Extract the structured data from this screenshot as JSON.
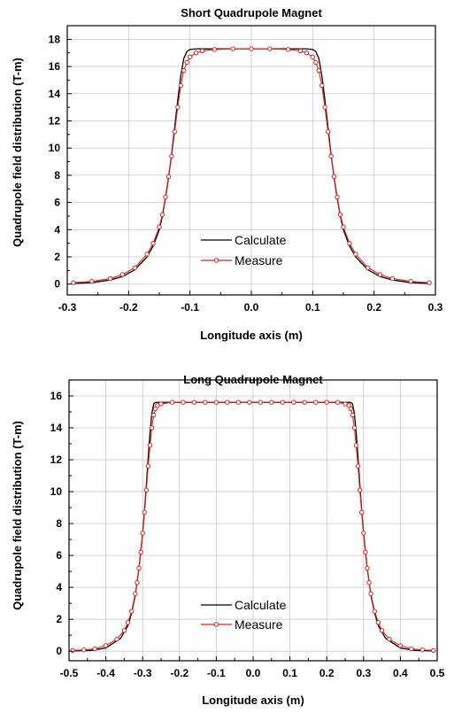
{
  "chart_data": [
    {
      "type": "line",
      "title": "Short Quadrupole Magnet",
      "xlabel": "Longitude axis (m)",
      "ylabel": "Quadrupole field distribution (T-m)",
      "xlim": [
        -0.3,
        0.3
      ],
      "ylim": [
        -0.8,
        19.0
      ],
      "xticks": [
        "-0.3",
        "-0.2",
        "-0.1",
        "0.0",
        "0.1",
        "0.2",
        "0.3"
      ],
      "yticks": [
        "0",
        "2",
        "4",
        "6",
        "8",
        "10",
        "12",
        "14",
        "16",
        "18"
      ],
      "grid": true,
      "legend_position": "lower-center",
      "series": [
        {
          "name": "Calculate",
          "color": "#000000",
          "marker": "none",
          "x": [
            -0.29,
            -0.26,
            -0.23,
            -0.21,
            -0.19,
            -0.17,
            -0.16,
            -0.15,
            -0.145,
            -0.14,
            -0.135,
            -0.13,
            -0.125,
            -0.12,
            -0.115,
            -0.11,
            -0.105,
            -0.1,
            -0.09,
            -0.06,
            0.0,
            0.06,
            0.09,
            0.1,
            0.105,
            0.11,
            0.115,
            0.12,
            0.125,
            0.13,
            0.135,
            0.14,
            0.145,
            0.15,
            0.16,
            0.17,
            0.19,
            0.21,
            0.23,
            0.26,
            0.29
          ],
          "y": [
            0.05,
            0.1,
            0.3,
            0.55,
            1.05,
            2.0,
            2.8,
            4.0,
            5.0,
            6.3,
            7.8,
            9.5,
            11.5,
            13.5,
            15.3,
            16.6,
            17.1,
            17.25,
            17.3,
            17.3,
            17.3,
            17.3,
            17.3,
            17.25,
            17.1,
            16.6,
            15.3,
            13.5,
            11.5,
            9.5,
            7.8,
            6.3,
            5.0,
            4.0,
            2.8,
            2.0,
            1.05,
            0.55,
            0.3,
            0.1,
            0.05
          ]
        },
        {
          "name": "Measure",
          "color": "#e02020",
          "marker": "circle",
          "x": [
            -0.29,
            -0.26,
            -0.23,
            -0.21,
            -0.19,
            -0.17,
            -0.16,
            -0.15,
            -0.145,
            -0.14,
            -0.135,
            -0.13,
            -0.125,
            -0.12,
            -0.115,
            -0.11,
            -0.105,
            -0.1,
            -0.09,
            -0.08,
            -0.06,
            -0.03,
            0.0,
            0.03,
            0.06,
            0.08,
            0.09,
            0.1,
            0.105,
            0.11,
            0.115,
            0.12,
            0.125,
            0.13,
            0.135,
            0.14,
            0.145,
            0.15,
            0.16,
            0.17,
            0.19,
            0.21,
            0.23,
            0.26,
            0.29
          ],
          "y": [
            0.1,
            0.2,
            0.4,
            0.7,
            1.2,
            2.2,
            3.0,
            4.2,
            5.1,
            6.4,
            7.9,
            9.4,
            11.2,
            13.0,
            14.6,
            15.7,
            16.3,
            16.7,
            17.0,
            17.15,
            17.25,
            17.3,
            17.3,
            17.3,
            17.25,
            17.15,
            17.0,
            16.7,
            16.3,
            15.7,
            14.6,
            13.0,
            11.2,
            9.4,
            7.9,
            6.4,
            5.1,
            4.2,
            3.0,
            2.2,
            1.2,
            0.7,
            0.4,
            0.2,
            0.1
          ]
        }
      ]
    },
    {
      "type": "line",
      "title": "Long Quadrupole Magnet",
      "xlabel": "Longitude axis (m)",
      "ylabel": "Quadrupole field distribution (T-m)",
      "xlim": [
        -0.5,
        0.5
      ],
      "ylim": [
        -0.6,
        17.0
      ],
      "xticks": [
        "-0.5",
        "-0.4",
        "-0.3",
        "-0.2",
        "-0.1",
        "0.0",
        "0.1",
        "0.2",
        "0.3",
        "0.4",
        "0.5"
      ],
      "yticks": [
        "0",
        "2",
        "4",
        "6",
        "8",
        "10",
        "12",
        "14",
        "16"
      ],
      "grid": true,
      "legend_position": "lower-center",
      "series": [
        {
          "name": "Calculate",
          "color": "#000000",
          "marker": "none",
          "x": [
            -0.49,
            -0.44,
            -0.4,
            -0.36,
            -0.34,
            -0.33,
            -0.32,
            -0.31,
            -0.3,
            -0.295,
            -0.29,
            -0.285,
            -0.28,
            -0.275,
            -0.27,
            -0.265,
            -0.26,
            -0.25,
            -0.2,
            0.0,
            0.2,
            0.25,
            0.26,
            0.265,
            0.27,
            0.275,
            0.28,
            0.285,
            0.29,
            0.295,
            0.3,
            0.31,
            0.32,
            0.33,
            0.34,
            0.36,
            0.4,
            0.44,
            0.49
          ],
          "y": [
            0.02,
            0.05,
            0.2,
            0.8,
            1.6,
            2.4,
            3.5,
            5.2,
            7.4,
            8.8,
            10.4,
            12.1,
            13.7,
            14.9,
            15.5,
            15.6,
            15.6,
            15.6,
            15.6,
            15.6,
            15.6,
            15.6,
            15.6,
            15.6,
            15.5,
            14.9,
            13.7,
            12.1,
            10.4,
            8.8,
            7.4,
            5.2,
            3.5,
            2.4,
            1.6,
            0.8,
            0.2,
            0.05,
            0.02
          ]
        },
        {
          "name": "Measure",
          "color": "#e02020",
          "marker": "circle",
          "x": [
            -0.49,
            -0.46,
            -0.43,
            -0.4,
            -0.37,
            -0.35,
            -0.34,
            -0.33,
            -0.32,
            -0.315,
            -0.31,
            -0.305,
            -0.3,
            -0.295,
            -0.29,
            -0.285,
            -0.28,
            -0.275,
            -0.27,
            -0.265,
            -0.26,
            -0.25,
            -0.22,
            -0.19,
            -0.16,
            -0.13,
            -0.1,
            -0.07,
            -0.04,
            -0.01,
            0.02,
            0.05,
            0.08,
            0.11,
            0.14,
            0.17,
            0.2,
            0.23,
            0.25,
            0.26,
            0.265,
            0.27,
            0.275,
            0.28,
            0.285,
            0.29,
            0.295,
            0.3,
            0.305,
            0.31,
            0.315,
            0.32,
            0.33,
            0.34,
            0.35,
            0.37,
            0.4,
            0.43,
            0.46,
            0.49
          ],
          "y": [
            0.05,
            0.08,
            0.15,
            0.35,
            0.75,
            1.3,
            1.8,
            2.5,
            3.6,
            4.3,
            5.2,
            6.2,
            7.4,
            8.7,
            10.1,
            11.6,
            12.9,
            14.0,
            14.8,
            15.2,
            15.4,
            15.5,
            15.6,
            15.6,
            15.6,
            15.6,
            15.6,
            15.6,
            15.6,
            15.6,
            15.6,
            15.6,
            15.6,
            15.6,
            15.6,
            15.6,
            15.6,
            15.6,
            15.5,
            15.4,
            15.2,
            14.8,
            14.0,
            12.9,
            11.6,
            10.1,
            8.7,
            7.4,
            6.2,
            5.2,
            4.3,
            3.6,
            2.5,
            1.8,
            1.3,
            0.75,
            0.35,
            0.15,
            0.08,
            0.05
          ]
        }
      ]
    }
  ]
}
